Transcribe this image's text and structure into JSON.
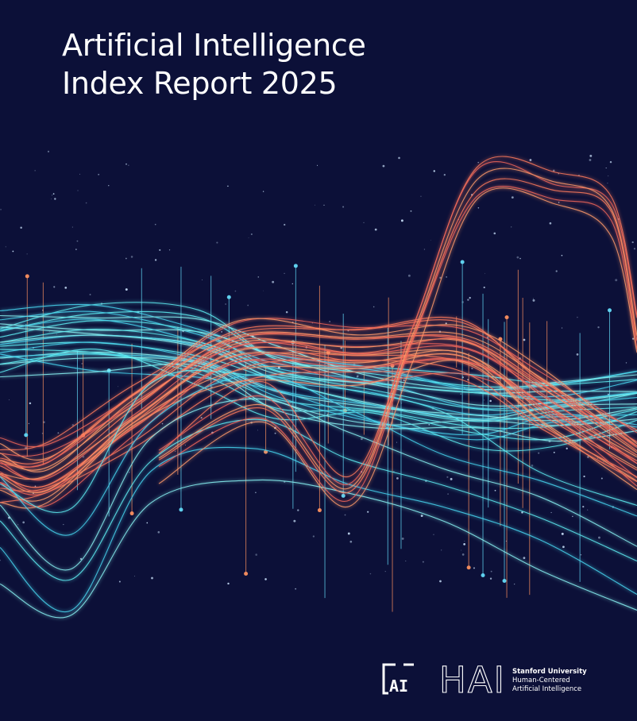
{
  "cover": {
    "title_lines": [
      "Artificial Intelligence",
      "Index Report 2025"
    ],
    "logo_ai": "AI",
    "logo_hai": "HAI",
    "affiliation_lines": [
      "Stanford University",
      "Human-Centered",
      "Artificial Intelligence"
    ]
  }
}
